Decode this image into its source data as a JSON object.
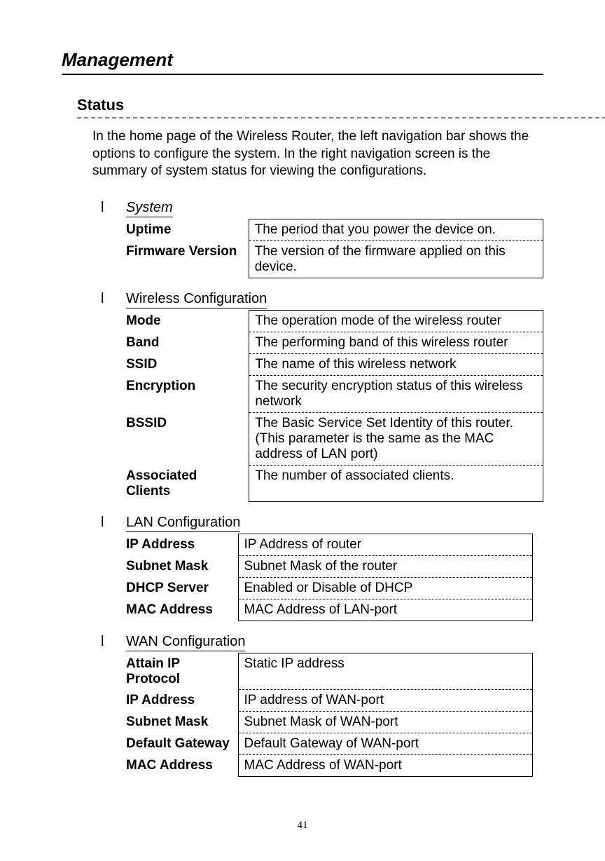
{
  "page": {
    "title": "Management",
    "section_title": "Status",
    "intro": "In the home page of the Wireless Router, the left navigation bar shows the options to configure the system. In the right navigation screen is the summary of system status for viewing the configurations.",
    "page_number": "41",
    "bullet_char": "l"
  },
  "groups": [
    {
      "id": "system",
      "name": "System",
      "italic": true,
      "rows": [
        {
          "label": "Uptime",
          "value": "The period that you power the device on."
        },
        {
          "label": "Firmware Version",
          "value": "The version of the firmware applied on this device."
        }
      ]
    },
    {
      "id": "wireless",
      "name": "Wireless Configuration",
      "italic": false,
      "rows": [
        {
          "label": "Mode",
          "value": "The operation mode of the wireless router"
        },
        {
          "label": "Band",
          "value": "The performing band of this wireless router"
        },
        {
          "label": "SSID",
          "value": "The name of this wireless network"
        },
        {
          "label": "Encryption",
          "value": "The security encryption status of this wireless network"
        },
        {
          "label": "BSSID",
          "value": "The Basic Service Set Identity of this router.(This parameter is the same as the MAC address of LAN port)"
        },
        {
          "label": "Associated Clients",
          "value": "The number of associated clients."
        }
      ]
    },
    {
      "id": "lan",
      "name": "LAN Configuration",
      "italic": false,
      "rows": [
        {
          "label": "IP Address",
          "value": "IP Address of router"
        },
        {
          "label": "Subnet Mask",
          "value": "Subnet Mask of the router"
        },
        {
          "label": "DHCP Server",
          "value": "Enabled or Disable of DHCP"
        },
        {
          "label": "MAC Address",
          "value": "MAC Address of LAN-port"
        }
      ]
    },
    {
      "id": "wan",
      "name": "WAN Configuration",
      "italic": false,
      "rows": [
        {
          "label": "Attain IP Protocol",
          "value": "Static IP address"
        },
        {
          "label": "IP Address",
          "value": "IP address of WAN-port"
        },
        {
          "label": "Subnet Mask",
          "value": "Subnet Mask of WAN-port"
        },
        {
          "label": "Default Gateway",
          "value": "Default Gateway of WAN-port"
        },
        {
          "label": "MAC Address",
          "value": "MAC Address of WAN-port"
        }
      ]
    }
  ],
  "styles": {
    "page_title_fontsize": 26,
    "section_title_fontsize": 22,
    "body_fontsize": 19,
    "group_name_fontsize": 20,
    "text_color": "#000000",
    "background_color": "#ffffff",
    "dashed_color": "#808080",
    "border_color": "#000000"
  }
}
